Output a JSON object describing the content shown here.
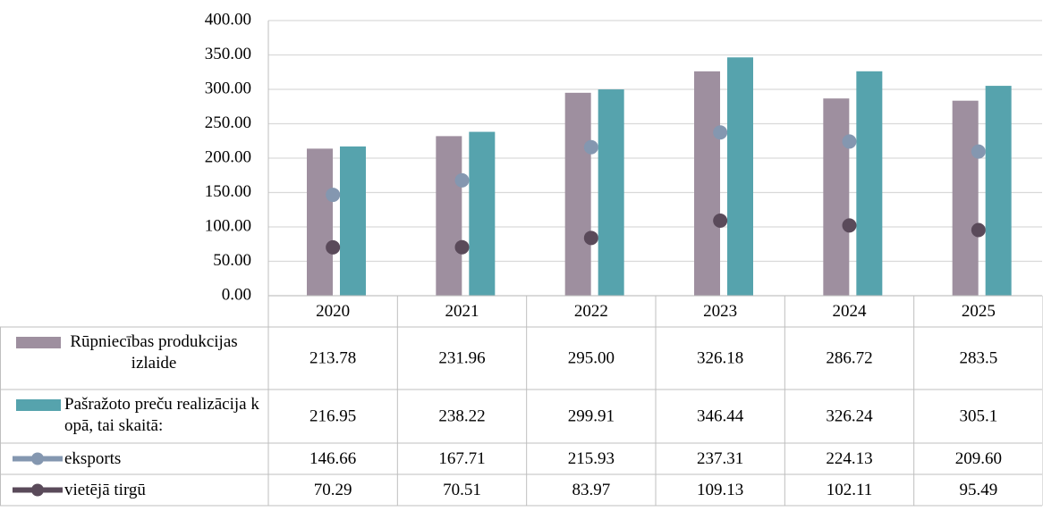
{
  "chart_data": {
    "type": "bar-line-table",
    "categories": [
      "2020",
      "2021",
      "2022",
      "2023",
      "2024",
      "2025"
    ],
    "series": [
      {
        "name": "Rūpniecības produkcijas izlaide",
        "type": "bar",
        "color": "#9e8f9f",
        "values": [
          213.78,
          231.96,
          295.0,
          326.18,
          286.72,
          283.5
        ],
        "value_labels": [
          "213.78",
          "231.96",
          "295.00",
          "326.18",
          "286.72",
          "283.5"
        ]
      },
      {
        "name": "Pašražoto preču realizācija kopā, tai skaitā:",
        "type": "bar",
        "color": "#56a3ad",
        "values": [
          216.95,
          238.22,
          299.91,
          346.44,
          326.24,
          305.1
        ],
        "value_labels": [
          "216.95",
          "238.22",
          "299.91",
          "346.44",
          "326.24",
          "305.1"
        ]
      },
      {
        "name": "eksports",
        "type": "line",
        "color": "#8497b0",
        "values": [
          146.66,
          167.71,
          215.93,
          237.31,
          224.13,
          209.6
        ],
        "value_labels": [
          "146.66",
          "167.71",
          "215.93",
          "237.31",
          "224.13",
          "209.60"
        ]
      },
      {
        "name": "vietējā tirgū",
        "type": "line",
        "color": "#5a4a5a",
        "values": [
          70.29,
          70.51,
          83.97,
          109.13,
          102.11,
          95.49
        ],
        "value_labels": [
          "70.29",
          "70.51",
          "83.97",
          "109.13",
          "102.11",
          "95.49"
        ]
      }
    ],
    "ylim": [
      0,
      400
    ],
    "yticks": [
      {
        "value": 0,
        "label": "0.00"
      },
      {
        "value": 50,
        "label": "50.00"
      },
      {
        "value": 100,
        "label": "100.00"
      },
      {
        "value": 150,
        "label": "150.00"
      },
      {
        "value": 200,
        "label": "200.00"
      },
      {
        "value": 250,
        "label": "250.00"
      },
      {
        "value": 300,
        "label": "300.00"
      },
      {
        "value": 350,
        "label": "350.00"
      },
      {
        "value": 400,
        "label": "400.00"
      }
    ],
    "grid": true
  }
}
